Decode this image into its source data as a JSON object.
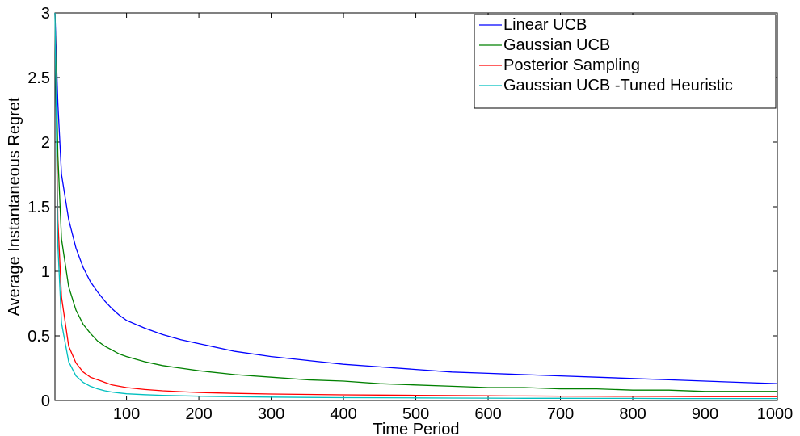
{
  "chart_data": {
    "type": "line",
    "title": "",
    "xlabel": "Time Period",
    "ylabel": "Average Instantaneous Regret",
    "xlim": [
      1,
      1000
    ],
    "ylim": [
      0,
      3
    ],
    "xticks": [
      100,
      200,
      300,
      400,
      500,
      600,
      700,
      800,
      900,
      1000
    ],
    "yticks": [
      0,
      0.5,
      1,
      1.5,
      2,
      2.5,
      3
    ],
    "ytick_labels": [
      "0",
      "0.5",
      "1",
      "1.5",
      "2",
      "2.5",
      "3"
    ],
    "grid": false,
    "legend_position": "top-right",
    "x": [
      1,
      5,
      10,
      20,
      30,
      40,
      50,
      60,
      70,
      80,
      90,
      100,
      125,
      150,
      175,
      200,
      250,
      300,
      350,
      400,
      450,
      500,
      550,
      600,
      650,
      700,
      750,
      800,
      850,
      900,
      950,
      1000
    ],
    "series": [
      {
        "name": "Linear UCB",
        "color": "#0000ff",
        "values": [
          3.0,
          2.3,
          1.75,
          1.4,
          1.18,
          1.03,
          0.92,
          0.84,
          0.77,
          0.71,
          0.66,
          0.62,
          0.56,
          0.51,
          0.47,
          0.44,
          0.38,
          0.34,
          0.31,
          0.28,
          0.26,
          0.24,
          0.22,
          0.21,
          0.2,
          0.19,
          0.18,
          0.17,
          0.16,
          0.15,
          0.14,
          0.13
        ]
      },
      {
        "name": "Gaussian UCB",
        "color": "#008000",
        "values": [
          3.0,
          1.9,
          1.25,
          0.88,
          0.7,
          0.59,
          0.52,
          0.46,
          0.42,
          0.39,
          0.36,
          0.34,
          0.3,
          0.27,
          0.25,
          0.23,
          0.2,
          0.18,
          0.16,
          0.15,
          0.13,
          0.12,
          0.11,
          0.1,
          0.1,
          0.09,
          0.09,
          0.08,
          0.08,
          0.07,
          0.07,
          0.07
        ]
      },
      {
        "name": "Posterior Sampling",
        "color": "#ff0000",
        "values": [
          3.0,
          1.4,
          0.8,
          0.42,
          0.29,
          0.22,
          0.18,
          0.16,
          0.14,
          0.12,
          0.11,
          0.1,
          0.085,
          0.075,
          0.068,
          0.062,
          0.055,
          0.05,
          0.047,
          0.044,
          0.042,
          0.04,
          0.038,
          0.036,
          0.035,
          0.034,
          0.033,
          0.032,
          0.031,
          0.03,
          0.03,
          0.03
        ]
      },
      {
        "name": "Gaussian UCB -Tuned Heuristic",
        "color": "#00bfbf",
        "values": [
          3.0,
          1.2,
          0.6,
          0.3,
          0.19,
          0.14,
          0.11,
          0.09,
          0.075,
          0.065,
          0.058,
          0.052,
          0.045,
          0.04,
          0.036,
          0.033,
          0.029,
          0.026,
          0.024,
          0.022,
          0.021,
          0.02,
          0.019,
          0.018,
          0.017,
          0.017,
          0.016,
          0.016,
          0.015,
          0.015,
          0.015,
          0.015
        ]
      }
    ]
  }
}
